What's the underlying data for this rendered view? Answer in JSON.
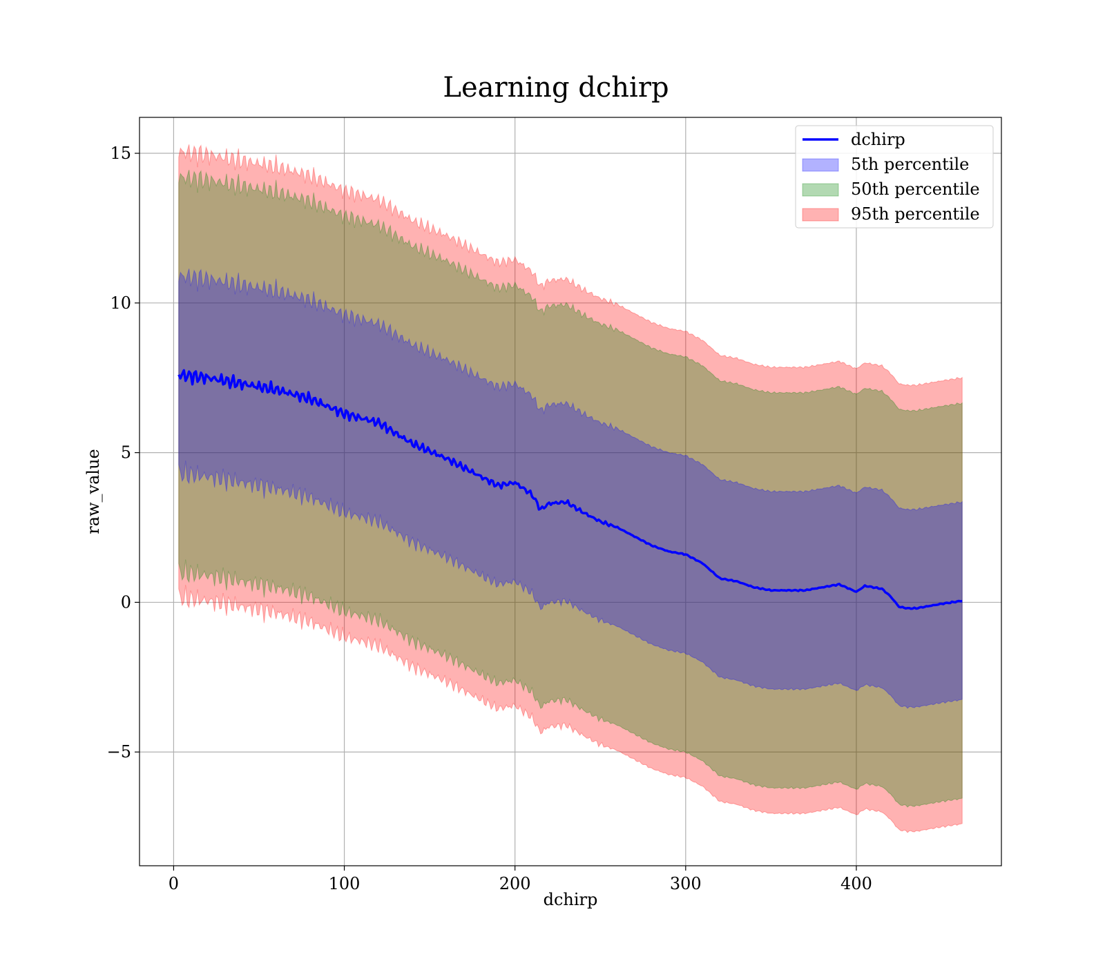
{
  "chart_data": {
    "type": "area",
    "title": "Learning dchirp",
    "xlabel": "dchirp",
    "ylabel": "raw_value",
    "xlim": [
      -20,
      485
    ],
    "ylim": [
      -8.8,
      16.2
    ],
    "xticks": [
      0,
      100,
      200,
      300,
      400
    ],
    "yticks": [
      -5,
      0,
      5,
      10,
      15
    ],
    "xtick_labels": [
      "0",
      "100",
      "200",
      "300",
      "400"
    ],
    "ytick_labels": [
      "−5",
      "0",
      "5",
      "10",
      "15"
    ],
    "grid": true,
    "legend_position": "top-right",
    "series": [
      {
        "name": "dchirp",
        "kind": "line",
        "color": "#0000ff",
        "x": [
          3,
          20,
          40,
          60,
          80,
          100,
          120,
          140,
          160,
          180,
          190,
          200,
          210,
          215,
          220,
          230,
          240,
          250,
          260,
          270,
          280,
          290,
          300,
          310,
          320,
          330,
          340,
          350,
          360,
          370,
          380,
          390,
          400,
          405,
          415,
          420,
          425,
          430,
          435,
          440,
          450,
          462
        ],
        "y": [
          7.6,
          7.5,
          7.3,
          7.1,
          6.8,
          6.3,
          6.0,
          5.3,
          4.8,
          4.2,
          3.9,
          4.0,
          3.6,
          3.1,
          3.3,
          3.35,
          3.0,
          2.7,
          2.5,
          2.2,
          1.9,
          1.7,
          1.6,
          1.3,
          0.8,
          0.7,
          0.5,
          0.4,
          0.4,
          0.4,
          0.5,
          0.6,
          0.35,
          0.55,
          0.45,
          0.2,
          -0.15,
          -0.2,
          -0.2,
          -0.15,
          -0.05,
          0.05
        ]
      },
      {
        "name": "5th percentile",
        "kind": "band",
        "color": "#0000ff",
        "half_width": 3.3
      },
      {
        "name": "50th percentile",
        "kind": "band",
        "color": "#008000",
        "half_width": 6.6
      },
      {
        "name": "95th percentile",
        "kind": "band",
        "color": "#ff0000",
        "half_width": 7.45
      }
    ]
  }
}
